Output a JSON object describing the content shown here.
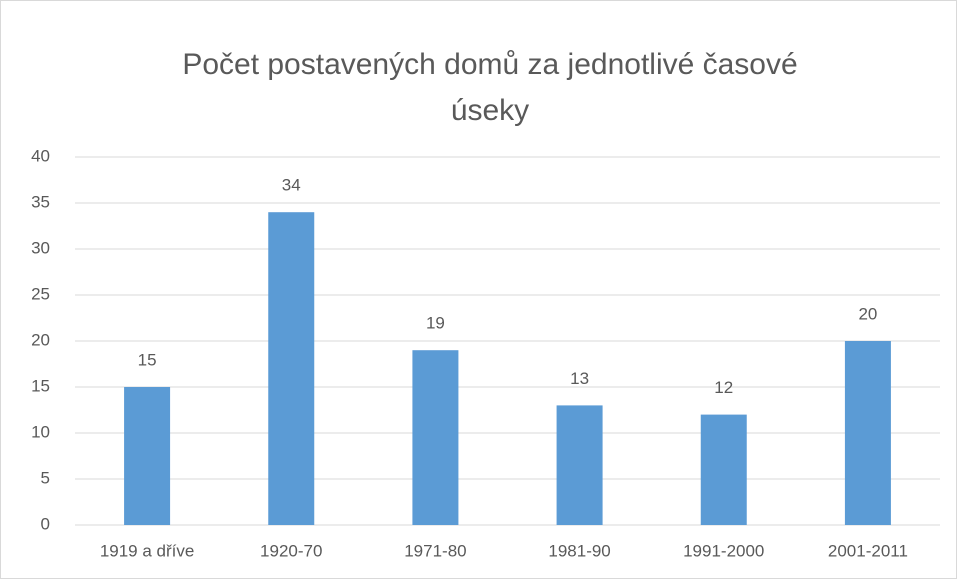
{
  "chart_data": {
    "type": "bar",
    "title": "Počet postavených domů za jednotlivé časové úseky",
    "categories": [
      "1919 a dříve",
      "1920-70",
      "1971-80",
      "1981-90",
      "1991-2000",
      "2001-2011"
    ],
    "values": [
      15,
      34,
      19,
      13,
      12,
      20
    ],
    "color": "#5b9bd5",
    "ylim": [
      0,
      40
    ],
    "yticks": [
      0,
      5,
      10,
      15,
      20,
      25,
      30,
      35,
      40
    ],
    "grid": true
  }
}
